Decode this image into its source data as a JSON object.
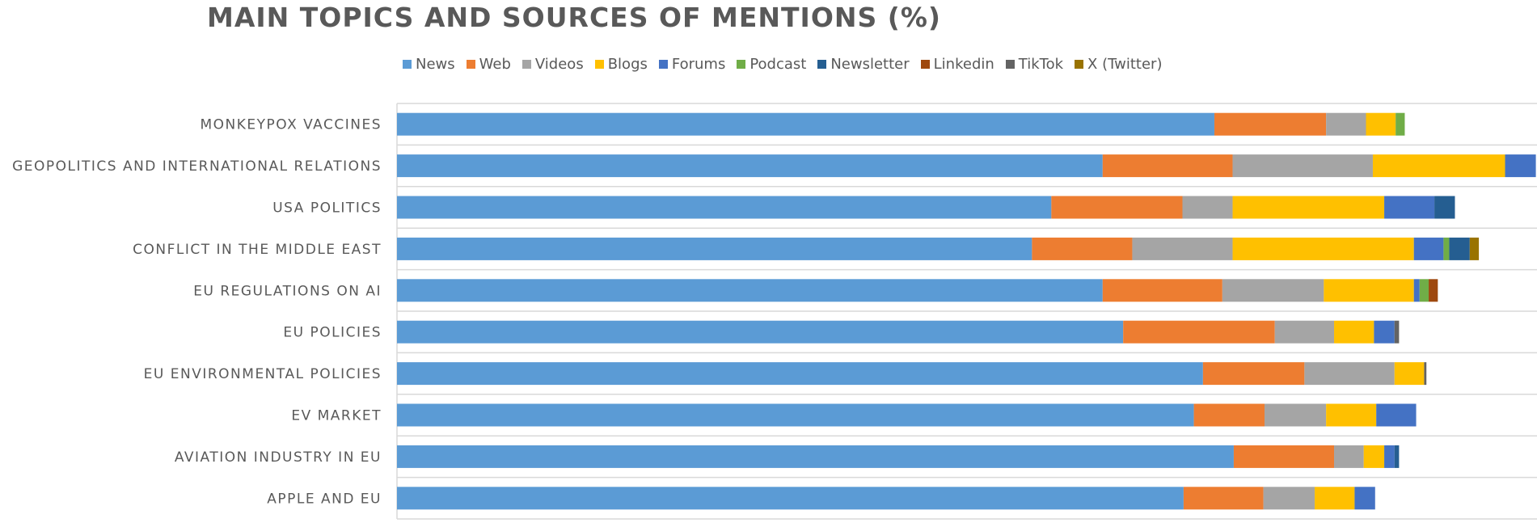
{
  "chart_data": {
    "type": "bar",
    "orientation": "horizontal",
    "stacked": true,
    "title": "MAIN TOPICS AND SOURCES OF MENTIONS (%)",
    "xlabel": "",
    "ylabel": "",
    "xlim": [
      0,
      100
    ],
    "legend_position": "top",
    "grid": true,
    "categories": [
      "MONKEYPOX VACCINES",
      "GEOPOLITICS AND INTERNATIONAL RELATIONS",
      "USA POLITICS",
      "CONFLICT IN THE MIDDLE EAST",
      "EU REGULATIONS ON AI",
      "EU POLICIES",
      "EU ENVIRONMENTAL POLICIES",
      "EV MARKET",
      "AVIATION INDUSTRY IN EU",
      "APPLE AND EU"
    ],
    "series": [
      {
        "name": "News",
        "color": "#5B9BD5",
        "values": [
          71.7,
          61.9,
          57.4,
          55.7,
          61.9,
          63.7,
          70.7,
          69.9,
          73.4,
          69.0
        ]
      },
      {
        "name": "Web",
        "color": "#ED7D31",
        "values": [
          9.8,
          11.4,
          11.5,
          8.8,
          10.5,
          13.3,
          8.9,
          6.2,
          8.8,
          7.0
        ]
      },
      {
        "name": "Videos",
        "color": "#A5A5A5",
        "values": [
          3.5,
          12.3,
          4.4,
          8.8,
          8.9,
          5.2,
          7.9,
          5.4,
          2.6,
          4.5
        ]
      },
      {
        "name": "Blogs",
        "color": "#FFC000",
        "values": [
          2.6,
          11.6,
          13.3,
          15.9,
          7.9,
          3.5,
          2.6,
          4.4,
          1.8,
          3.5
        ]
      },
      {
        "name": "Forums",
        "color": "#4472C4",
        "values": [
          0,
          2.7,
          4.4,
          2.6,
          0.5,
          1.8,
          0,
          3.5,
          0.9,
          1.8
        ]
      },
      {
        "name": "Podcast",
        "color": "#70AD47",
        "values": [
          0.8,
          0,
          0,
          0.5,
          0.8,
          0,
          0,
          0,
          0,
          0
        ]
      },
      {
        "name": "Newsletter",
        "color": "#255E91",
        "values": [
          0,
          0,
          1.8,
          1.8,
          0,
          0,
          0,
          0,
          0.4,
          0
        ]
      },
      {
        "name": "Linkedin",
        "color": "#9E480E",
        "values": [
          0,
          0,
          0,
          0,
          0.8,
          0,
          0,
          0,
          0,
          0
        ]
      },
      {
        "name": "TikTok",
        "color": "#636363",
        "values": [
          0,
          0,
          0,
          0,
          0,
          0.4,
          0.2,
          0,
          0,
          0
        ]
      },
      {
        "name": "X (Twitter)",
        "color": "#997300",
        "values": [
          0,
          0,
          0,
          0.8,
          0,
          0,
          0,
          0,
          0,
          0
        ]
      }
    ]
  }
}
